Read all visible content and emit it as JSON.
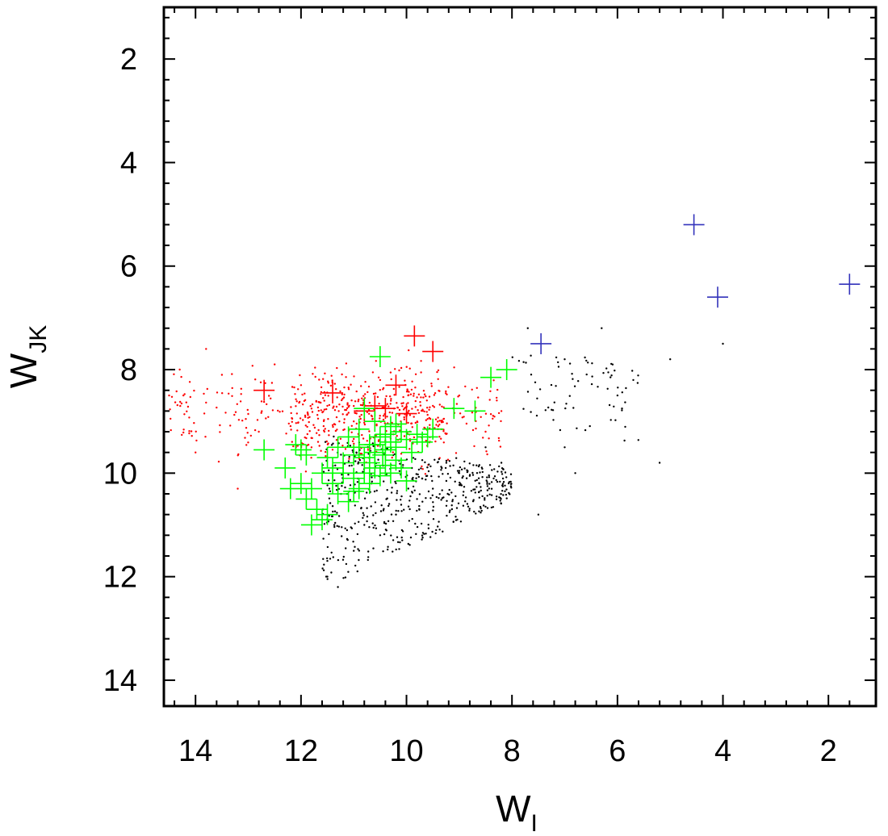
{
  "chart_data": {
    "type": "scatter",
    "title": "",
    "xlabel": {
      "base": "W",
      "sub": "I"
    },
    "ylabel": {
      "base": "W",
      "sub": "JK"
    },
    "xlim": [
      14.6,
      1.1
    ],
    "ylim": [
      14.5,
      1.0
    ],
    "x_inverted": true,
    "y_inverted": true,
    "x_ticks": [
      14,
      12,
      10,
      8,
      6,
      4,
      2
    ],
    "y_ticks": [
      2,
      4,
      6,
      8,
      10,
      12,
      14
    ],
    "grid": false,
    "legend": "none",
    "series": [
      {
        "marker": "dot",
        "color": "#000000",
        "approx_count": 500,
        "points_sample": [
          [
            10.8,
            11.0
          ],
          [
            10.5,
            11.2
          ],
          [
            11.0,
            11.5
          ],
          [
            10.2,
            10.8
          ],
          [
            9.8,
            10.5
          ],
          [
            9.5,
            10.3
          ],
          [
            9.0,
            10.0
          ],
          [
            8.5,
            9.5
          ],
          [
            8.2,
            9.8
          ],
          [
            11.5,
            12.0
          ],
          [
            11.3,
            12.2
          ],
          [
            7.7,
            7.2
          ],
          [
            7.0,
            7.8
          ],
          [
            6.3,
            7.2
          ],
          [
            6.0,
            8.5
          ],
          [
            5.7,
            8.2
          ],
          [
            5.0,
            7.8
          ],
          [
            5.2,
            9.8
          ],
          [
            4.0,
            7.5
          ],
          [
            7.5,
            10.8
          ],
          [
            6.8,
            10.0
          ],
          [
            7.0,
            9.5
          ]
        ]
      },
      {
        "marker": "dot",
        "color": "#ff0000",
        "approx_count": 600,
        "points_sample": [
          [
            14.3,
            8.0
          ],
          [
            14.5,
            8.5
          ],
          [
            14.0,
            9.6
          ],
          [
            13.5,
            8.1
          ],
          [
            13.2,
            10.3
          ],
          [
            12.5,
            7.9
          ],
          [
            12.0,
            8.3
          ],
          [
            11.5,
            8.7
          ],
          [
            11.0,
            9.0
          ],
          [
            10.5,
            8.2
          ],
          [
            10.0,
            8.9
          ],
          [
            9.5,
            8.7
          ],
          [
            9.0,
            8.5
          ],
          [
            8.5,
            9.2
          ],
          [
            8.2,
            8.8
          ],
          [
            12.8,
            9.2
          ],
          [
            11.8,
            9.5
          ],
          [
            13.8,
            7.6
          ]
        ]
      },
      {
        "marker": "plus",
        "color": "#00ff00",
        "points": [
          [
            10.5,
            7.75
          ],
          [
            8.4,
            8.15
          ],
          [
            8.1,
            8.0
          ],
          [
            9.1,
            8.75
          ],
          [
            8.7,
            8.8
          ],
          [
            9.5,
            9.15
          ],
          [
            9.8,
            9.25
          ],
          [
            10.0,
            9.35
          ],
          [
            10.1,
            9.2
          ],
          [
            10.2,
            9.5
          ],
          [
            10.3,
            9.4
          ],
          [
            10.4,
            9.55
          ],
          [
            10.5,
            9.3
          ],
          [
            10.6,
            9.6
          ],
          [
            10.7,
            9.45
          ],
          [
            10.8,
            9.7
          ],
          [
            10.9,
            9.5
          ],
          [
            11.0,
            9.65
          ],
          [
            10.2,
            9.75
          ],
          [
            10.4,
            9.85
          ],
          [
            10.6,
            9.9
          ],
          [
            10.8,
            10.0
          ],
          [
            11.0,
            10.1
          ],
          [
            11.2,
            9.8
          ],
          [
            11.4,
            10.2
          ],
          [
            11.6,
            10.0
          ],
          [
            11.8,
            10.3
          ],
          [
            12.0,
            10.2
          ],
          [
            12.3,
            9.9
          ],
          [
            12.7,
            9.55
          ],
          [
            12.1,
            9.45
          ],
          [
            12.2,
            10.3
          ],
          [
            11.9,
            10.5
          ],
          [
            11.7,
            10.7
          ],
          [
            11.5,
            10.8
          ],
          [
            11.8,
            11.0
          ],
          [
            11.6,
            10.9
          ],
          [
            11.3,
            10.4
          ],
          [
            11.1,
            10.55
          ],
          [
            10.9,
            10.3
          ],
          [
            10.7,
            10.2
          ],
          [
            10.5,
            10.05
          ],
          [
            10.3,
            10.0
          ],
          [
            10.1,
            9.9
          ],
          [
            9.9,
            9.6
          ],
          [
            9.7,
            9.4
          ],
          [
            10.0,
            10.15
          ],
          [
            10.3,
            9.1
          ],
          [
            10.6,
            9.0
          ],
          [
            10.9,
            9.15
          ],
          [
            10.8,
            8.75
          ],
          [
            11.1,
            9.3
          ],
          [
            11.3,
            9.5
          ],
          [
            11.5,
            9.7
          ],
          [
            11.2,
            10.0
          ],
          [
            11.0,
            10.35
          ],
          [
            10.6,
            9.45
          ],
          [
            10.4,
            9.25
          ],
          [
            10.2,
            9.05
          ],
          [
            9.6,
            9.3
          ],
          [
            11.9,
            9.65
          ],
          [
            12.0,
            9.55
          ],
          [
            11.4,
            9.9
          ],
          [
            10.7,
            9.8
          ],
          [
            10.45,
            9.65
          ]
        ]
      },
      {
        "marker": "plus",
        "color": "#ff0000",
        "points": [
          [
            12.7,
            8.4
          ],
          [
            11.4,
            8.45
          ],
          [
            10.2,
            8.3
          ],
          [
            9.85,
            7.35
          ],
          [
            9.5,
            7.65
          ],
          [
            10.6,
            8.7
          ],
          [
            10.8,
            8.8
          ],
          [
            10.4,
            8.75
          ],
          [
            10.0,
            8.85
          ]
        ]
      },
      {
        "marker": "plus",
        "color": "#3333bb",
        "points": [
          [
            4.55,
            5.2
          ],
          [
            4.1,
            6.6
          ],
          [
            1.6,
            6.35
          ],
          [
            7.45,
            7.5
          ]
        ]
      }
    ]
  }
}
